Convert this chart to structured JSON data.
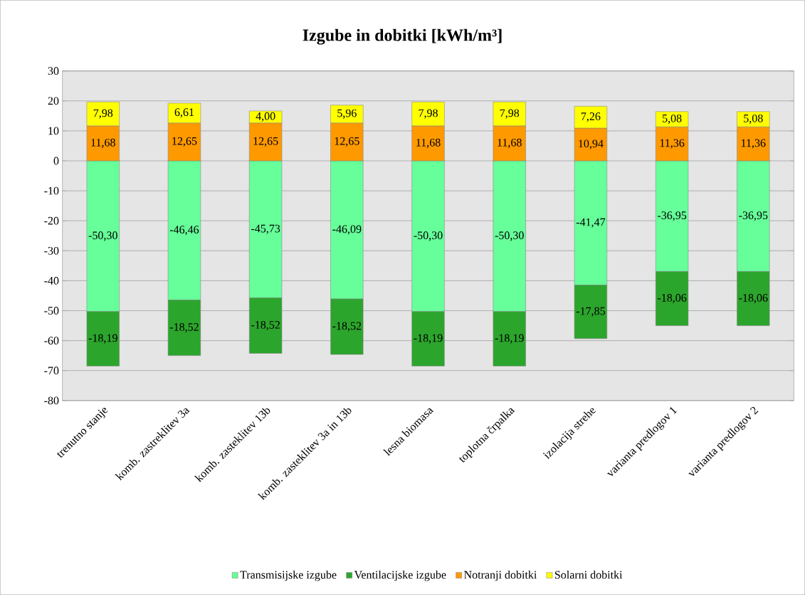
{
  "chart_data": {
    "type": "bar",
    "stacked": true,
    "title": "Izgube in dobitki [kWh/m³]",
    "categories": [
      "trenutno stanje",
      "komb. zastreklitev 3a",
      "komb. zasteklitev 13b",
      "komb. zasteklitev 3a in 13b",
      "lesna biomasa",
      "toplotna črpalka",
      "izolacija strehe",
      "varianta predlogov 1",
      "varianta predlogov 2"
    ],
    "series": [
      {
        "name": "Transmisijske izgube",
        "color": "#66ff99",
        "values": [
          -50.3,
          -46.46,
          -45.73,
          -46.09,
          -50.3,
          -50.3,
          -41.47,
          -36.95,
          -36.95
        ],
        "value_labels": [
          "-50,30",
          "-46,46",
          "-45,73",
          "-46,09",
          "-50,30",
          "-50,30",
          "-41,47",
          "-36,95",
          "-36,95"
        ]
      },
      {
        "name": "Ventilacijske izgube",
        "color": "#2ca52c",
        "values": [
          -18.19,
          -18.52,
          -18.52,
          -18.52,
          -18.19,
          -18.19,
          -17.85,
          -18.06,
          -18.06
        ],
        "value_labels": [
          "-18,19",
          "-18,52",
          "-18,52",
          "-18,52",
          "-18,19",
          "-18,19",
          "-17,85",
          "-18,06",
          "-18,06"
        ]
      },
      {
        "name": "Notranji dobitki",
        "color": "#ff9900",
        "values": [
          11.68,
          12.65,
          12.65,
          12.65,
          11.68,
          11.68,
          10.94,
          11.36,
          11.36
        ],
        "value_labels": [
          "11,68",
          "12,65",
          "12,65",
          "12,65",
          "11,68",
          "11,68",
          "10,94",
          "11,36",
          "11,36"
        ]
      },
      {
        "name": "Solarni dobitki",
        "color": "#ffff00",
        "values": [
          7.98,
          6.61,
          4.0,
          5.96,
          7.98,
          7.98,
          7.26,
          5.08,
          5.08
        ],
        "value_labels": [
          "7,98",
          "6,61",
          "4,00",
          "5,96",
          "7,98",
          "7,98",
          "7,26",
          "5,08",
          "5,08"
        ]
      }
    ],
    "ylim": [
      -80,
      30
    ],
    "yticks": [
      -80,
      -70,
      -60,
      -50,
      -40,
      -30,
      -20,
      -10,
      0,
      10,
      20,
      30
    ],
    "grid": "y",
    "legend": "bottom"
  }
}
